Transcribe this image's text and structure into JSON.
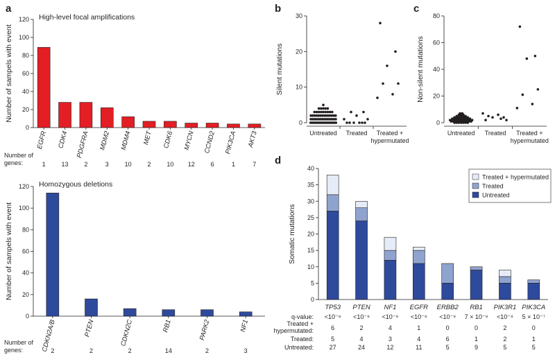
{
  "panel_labels": {
    "a": "a",
    "b": "b",
    "c": "c",
    "d": "d"
  },
  "colors": {
    "red": "#e31e24",
    "blue": "#2e4a9c",
    "mid": "#8fa3cf",
    "light": "#e6ecf7",
    "axis": "#231f20"
  },
  "chart_data": [
    {
      "id": "a1",
      "type": "bar",
      "title": "High-level focal amplifications",
      "ylabel": "Number of sampels with event",
      "ylim": [
        0,
        120
      ],
      "yticks": [
        0,
        20,
        40,
        60,
        80,
        100,
        120
      ],
      "categories": [
        "EGFR",
        "CDK4",
        "PDGFRA",
        "MDM2",
        "MDM4",
        "MET",
        "CDK6",
        "MYCN",
        "CCND2",
        "PIK3CA",
        "AKT3"
      ],
      "values": [
        89,
        28,
        28,
        22,
        12,
        7,
        7,
        5,
        5,
        4,
        4
      ],
      "genes_label": "Number of genes:",
      "genes": [
        "1",
        "13",
        "2",
        "3",
        "10",
        "2",
        "10",
        "12",
        "6",
        "1",
        "7"
      ]
    },
    {
      "id": "a2",
      "type": "bar",
      "title": "Homozygous deletions",
      "ylabel": "Number of sampels with event",
      "ylim": [
        0,
        120
      ],
      "yticks": [
        0,
        20,
        40,
        60,
        80,
        100,
        120
      ],
      "categories": [
        "CDKN2A/B",
        "PTEN",
        "CDKN2C",
        "RB1",
        "PARK2",
        "NF1"
      ],
      "values": [
        114,
        16,
        7,
        6,
        6,
        4
      ],
      "genes_label": "Number of genes:",
      "genes": [
        "2",
        "2",
        "2",
        "14",
        "2",
        "3"
      ]
    },
    {
      "id": "b",
      "type": "scatter",
      "ylabel": "Silent mutations",
      "ylim": [
        0,
        30
      ],
      "yticks": [
        0,
        10,
        20,
        30
      ],
      "categories": [
        "Untreated",
        "Treated",
        "Treated +\nhypermutated"
      ],
      "groups": [
        {
          "name": "Untreated",
          "values": [
            0,
            0,
            0,
            0,
            0,
            0,
            0,
            0,
            0,
            0,
            0,
            0,
            0,
            0,
            0,
            0,
            0,
            0,
            0,
            0,
            0,
            0,
            1,
            1,
            1,
            1,
            1,
            1,
            1,
            1,
            1,
            1,
            1,
            1,
            1,
            1,
            1,
            1,
            2,
            2,
            2,
            2,
            2,
            2,
            2,
            2,
            2,
            2,
            2,
            2,
            2,
            2,
            3,
            3,
            3,
            3,
            3,
            3,
            3,
            3,
            3,
            4,
            4,
            4,
            4,
            4,
            5
          ]
        },
        {
          "name": "Treated",
          "values": [
            0,
            0,
            0,
            0,
            0,
            0,
            1,
            1,
            2,
            3,
            3
          ]
        },
        {
          "name": "Treated + hypermutated",
          "values": [
            28,
            20,
            16,
            11,
            11,
            8,
            7
          ]
        }
      ]
    },
    {
      "id": "c",
      "type": "scatter",
      "ylabel": "Non-silent mutations",
      "ylim": [
        0,
        80
      ],
      "yticks": [
        0,
        20,
        40,
        60,
        80
      ],
      "categories": [
        "Untreated",
        "Treated",
        "Treated +\nhypermutated"
      ],
      "groups": [
        {
          "name": "Untreated",
          "values": [
            0,
            0,
            0,
            0,
            0,
            0,
            0,
            1,
            1,
            1,
            1,
            1,
            1,
            1,
            1,
            1,
            1,
            2,
            2,
            2,
            2,
            2,
            2,
            2,
            2,
            2,
            2,
            2,
            3,
            3,
            3,
            3,
            3,
            3,
            3,
            3,
            3,
            4,
            4,
            4,
            4,
            4,
            4,
            4,
            5,
            5,
            5,
            5,
            5,
            6,
            6,
            6,
            7,
            7
          ]
        },
        {
          "name": "Treated",
          "values": [
            2,
            3,
            4,
            4,
            5,
            6,
            7,
            2
          ]
        },
        {
          "name": "Treated + hypermutated",
          "values": [
            72,
            50,
            48,
            25,
            21,
            14,
            11
          ]
        }
      ]
    },
    {
      "id": "d",
      "type": "bar",
      "stacked": true,
      "ylabel": "Somatic mutations",
      "ylim": [
        0,
        40
      ],
      "yticks": [
        0,
        5,
        10,
        15,
        20,
        25,
        30,
        35,
        40
      ],
      "categories": [
        "TP53",
        "PTEN",
        "NF1",
        "EGFR",
        "ERBB2",
        "RB1",
        "PIK3R1",
        "PIK3CA"
      ],
      "series": [
        {
          "name": "Untreated",
          "color": "#2e4a9c",
          "values": [
            27,
            24,
            12,
            11,
            5,
            9,
            5,
            5
          ]
        },
        {
          "name": "Treated",
          "color": "#8fa3cf",
          "values": [
            5,
            4,
            3,
            4,
            6,
            1,
            2,
            1
          ]
        },
        {
          "name": "Treated + hypermutated",
          "color": "#e6ecf7",
          "values": [
            6,
            2,
            4,
            1,
            0,
            0,
            2,
            0
          ]
        }
      ],
      "legend": [
        "Treated + hypermutated",
        "Treated",
        "Untreated"
      ],
      "qvalue_label": "q-value:",
      "qvalues": [
        "<10⁻⁸",
        "<10⁻⁸",
        "<10⁻⁸",
        "<10⁻⁸",
        "<10⁻⁸",
        "7 × 10⁻⁸",
        "<10⁻⁸",
        "5 × 10⁻⁷"
      ],
      "rows": [
        {
          "label": "Treated +\nhypermutated:",
          "values": [
            "6",
            "2",
            "4",
            "1",
            "0",
            "0",
            "2",
            "0"
          ]
        },
        {
          "label": "Treated:",
          "values": [
            "5",
            "4",
            "3",
            "4",
            "6",
            "1",
            "2",
            "1"
          ]
        },
        {
          "label": "Untreated:",
          "values": [
            "27",
            "24",
            "12",
            "11",
            "5",
            "9",
            "5",
            "5"
          ]
        }
      ]
    }
  ]
}
